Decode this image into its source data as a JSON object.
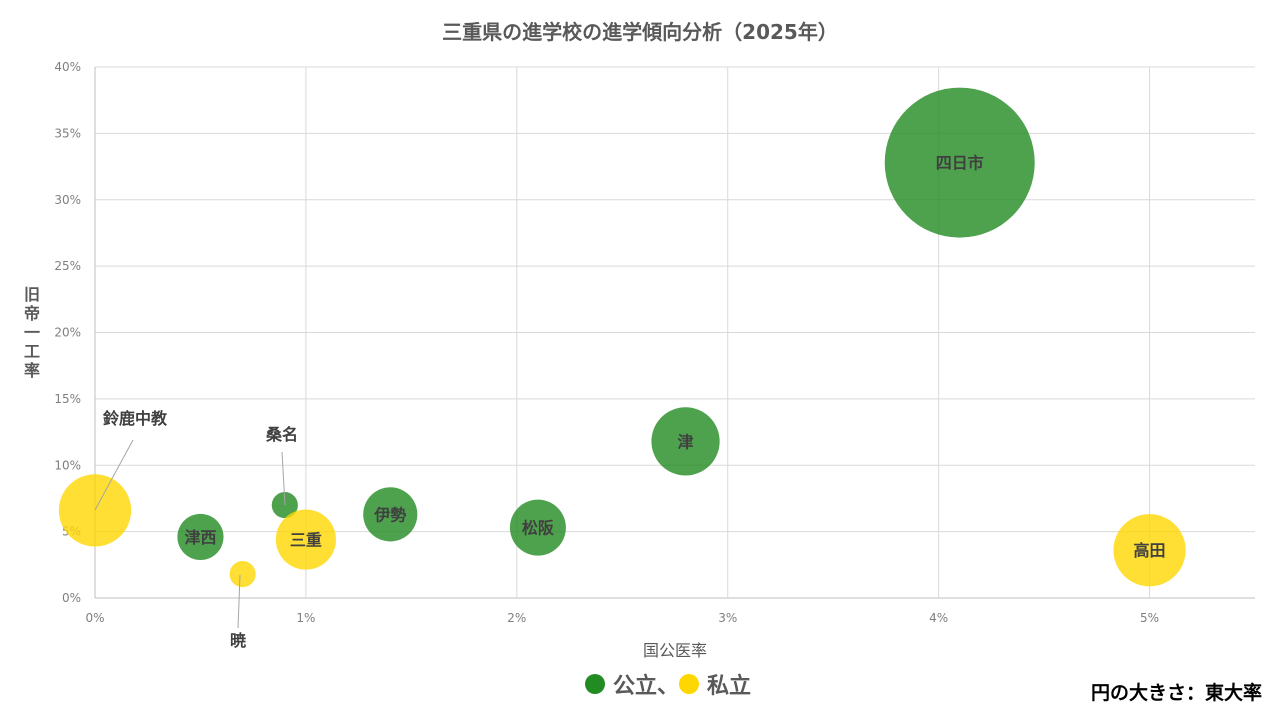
{
  "chart_data": {
    "type": "bubble",
    "title": "三重県の進学校の進学傾向分析（2025年）",
    "xlabel": "国公医率",
    "ylabel": "旧帝一工率",
    "xlim": [
      0,
      5.5
    ],
    "ylim": [
      0,
      40
    ],
    "xticks": [
      "0%",
      "1%",
      "2%",
      "3%",
      "4%",
      "5%"
    ],
    "yticks": [
      "0%",
      "5%",
      "10%",
      "15%",
      "20%",
      "25%",
      "30%",
      "35%",
      "40%"
    ],
    "grid": true,
    "size_note": "円の大きさ：東大率",
    "legend": {
      "public": "公立、",
      "private": "私立",
      "placement": "bottom"
    },
    "colors": {
      "public": "#228B22",
      "private": "#FFD700"
    },
    "points": [
      {
        "name": "鈴鹿中教",
        "x": 0.0,
        "y": 6.6,
        "size": 1.3,
        "type": "private"
      },
      {
        "name": "津西",
        "x": 0.5,
        "y": 4.6,
        "size": 0.53,
        "type": "public"
      },
      {
        "name": "暁",
        "x": 0.7,
        "y": 1.8,
        "size": 0.17,
        "type": "private"
      },
      {
        "name": "桑名",
        "x": 0.9,
        "y": 7.0,
        "size": 0.17,
        "type": "public"
      },
      {
        "name": "三重",
        "x": 1.0,
        "y": 4.4,
        "size": 0.9,
        "type": "private"
      },
      {
        "name": "伊勢",
        "x": 1.4,
        "y": 6.3,
        "size": 0.73,
        "type": "public"
      },
      {
        "name": "松阪",
        "x": 2.1,
        "y": 5.3,
        "size": 0.78,
        "type": "public"
      },
      {
        "name": "津",
        "x": 2.8,
        "y": 11.8,
        "size": 1.16,
        "type": "public"
      },
      {
        "name": "四日市",
        "x": 4.1,
        "y": 32.8,
        "size": 5.6,
        "type": "public"
      },
      {
        "name": "高田",
        "x": 5.0,
        "y": 3.6,
        "size": 1.3,
        "type": "private"
      }
    ]
  }
}
